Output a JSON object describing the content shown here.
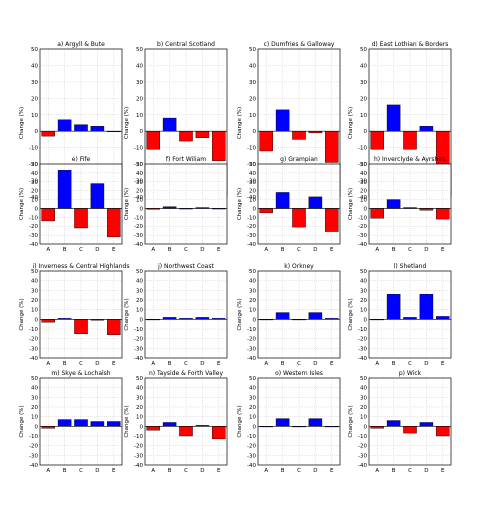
{
  "colors": {
    "positive": "#0000ff",
    "negative": "#ff0000",
    "axis": "#000000",
    "grid": "#bfbfbf",
    "background": "#ffffff"
  },
  "chart_data": [
    {
      "type": "bar",
      "title": "a) Argyll & Bute",
      "ylabel": "Change (%)",
      "categories": [
        "A",
        "B",
        "C",
        "D",
        "E"
      ],
      "values": [
        -3,
        7,
        4,
        3,
        0
      ],
      "ylim": [
        -40,
        50
      ],
      "yticks": [
        -40,
        -30,
        -20,
        -10,
        0,
        10,
        20,
        30,
        40,
        50
      ],
      "grid": true
    },
    {
      "type": "bar",
      "title": "b) Central Scotland",
      "ylabel": "Change (%)",
      "categories": [
        "A",
        "B",
        "C",
        "D",
        "E"
      ],
      "values": [
        -11,
        8,
        -6,
        -4,
        -18
      ],
      "ylim": [
        -40,
        50
      ],
      "yticks": [
        -40,
        -30,
        -20,
        -10,
        0,
        10,
        20,
        30,
        40,
        50
      ],
      "grid": true
    },
    {
      "type": "bar",
      "title": "c) Dumfries & Galloway",
      "ylabel": "Change (%)",
      "categories": [
        "A",
        "B",
        "C",
        "D",
        "E"
      ],
      "values": [
        -12,
        13,
        -5,
        -1,
        -19
      ],
      "ylim": [
        -40,
        50
      ],
      "yticks": [
        -40,
        -30,
        -20,
        -10,
        0,
        10,
        20,
        30,
        40,
        50
      ],
      "grid": true
    },
    {
      "type": "bar",
      "title": "d) East Lothian & Borders",
      "ylabel": "Change (%)",
      "categories": [
        "A",
        "B",
        "C",
        "D",
        "E"
      ],
      "values": [
        -11,
        16,
        -11,
        3,
        -23
      ],
      "ylim": [
        -40,
        50
      ],
      "yticks": [
        -40,
        -30,
        -20,
        -10,
        0,
        10,
        20,
        30,
        40,
        50
      ],
      "grid": true
    },
    {
      "type": "bar",
      "title": "e) Fife",
      "ylabel": "Change (%)",
      "categories": [
        "A",
        "B",
        "C",
        "D",
        "E"
      ],
      "values": [
        -14,
        43,
        -22,
        28,
        -32
      ],
      "ylim": [
        -40,
        50
      ],
      "yticks": [
        -40,
        -30,
        -20,
        -10,
        0,
        10,
        20,
        30,
        40,
        50
      ],
      "grid": true
    },
    {
      "type": "bar",
      "title": "f) Fort Wiliam",
      "ylabel": "Change (%)",
      "categories": [
        "A",
        "B",
        "C",
        "D",
        "E"
      ],
      "values": [
        -1,
        2,
        0,
        1,
        0
      ],
      "ylim": [
        -40,
        50
      ],
      "yticks": [
        -40,
        -30,
        -20,
        -10,
        0,
        10,
        20,
        30,
        40,
        50
      ],
      "grid": true
    },
    {
      "type": "bar",
      "title": "g) Grampian",
      "ylabel": "Change (%)",
      "categories": [
        "A",
        "B",
        "C",
        "D",
        "E"
      ],
      "values": [
        -5,
        18,
        -21,
        13,
        -26
      ],
      "ylim": [
        -40,
        50
      ],
      "yticks": [
        -40,
        -30,
        -20,
        -10,
        0,
        10,
        20,
        30,
        40,
        50
      ],
      "grid": true
    },
    {
      "type": "bar",
      "title": "h) Inverclyde & Ayrshire",
      "ylabel": "Change (%)",
      "categories": [
        "A",
        "B",
        "C",
        "D",
        "E"
      ],
      "values": [
        -11,
        10,
        1,
        -2,
        -12
      ],
      "ylim": [
        -40,
        50
      ],
      "yticks": [
        -40,
        -30,
        -20,
        -10,
        0,
        10,
        20,
        30,
        40,
        50
      ],
      "grid": true
    },
    {
      "type": "bar",
      "title": "i) Inverness & Central Highlands",
      "ylabel": "Change (%)",
      "categories": [
        "A",
        "B",
        "C",
        "D",
        "E"
      ],
      "values": [
        -3,
        1,
        -15,
        -1,
        -16
      ],
      "ylim": [
        -40,
        50
      ],
      "yticks": [
        -40,
        -30,
        -20,
        -10,
        0,
        10,
        20,
        30,
        40,
        50
      ],
      "grid": true
    },
    {
      "type": "bar",
      "title": "j) Northwest Coast",
      "ylabel": "Change (%)",
      "categories": [
        "A",
        "B",
        "C",
        "D",
        "E"
      ],
      "values": [
        0,
        2,
        1,
        2,
        1
      ],
      "ylim": [
        -40,
        50
      ],
      "yticks": [
        -40,
        -30,
        -20,
        -10,
        0,
        10,
        20,
        30,
        40,
        50
      ],
      "grid": true
    },
    {
      "type": "bar",
      "title": "k) Orkney",
      "ylabel": "Change (%)",
      "categories": [
        "A",
        "B",
        "C",
        "D",
        "E"
      ],
      "values": [
        0,
        7,
        0,
        7,
        1
      ],
      "ylim": [
        -40,
        50
      ],
      "yticks": [
        -40,
        -30,
        -20,
        -10,
        0,
        10,
        20,
        30,
        40,
        50
      ],
      "grid": true
    },
    {
      "type": "bar",
      "title": "l) Shetland",
      "ylabel": "Change (%)",
      "categories": [
        "A",
        "B",
        "C",
        "D",
        "E"
      ],
      "values": [
        0,
        26,
        2,
        26,
        3
      ],
      "ylim": [
        -40,
        50
      ],
      "yticks": [
        -40,
        -30,
        -20,
        -10,
        0,
        10,
        20,
        30,
        40,
        50
      ],
      "grid": true
    },
    {
      "type": "bar",
      "title": "m) Skye & Lochalsh",
      "ylabel": "Change (%)",
      "categories": [
        "A",
        "B",
        "C",
        "D",
        "E"
      ],
      "values": [
        -2,
        7,
        7,
        5,
        5
      ],
      "ylim": [
        -40,
        50
      ],
      "yticks": [
        -40,
        -30,
        -20,
        -10,
        0,
        10,
        20,
        30,
        40,
        50
      ],
      "grid": true
    },
    {
      "type": "bar",
      "title": "n) Tayside & Forth Valley",
      "ylabel": "Change (%)",
      "categories": [
        "A",
        "B",
        "C",
        "D",
        "E"
      ],
      "values": [
        -4,
        4,
        -10,
        1,
        -13
      ],
      "ylim": [
        -40,
        50
      ],
      "yticks": [
        -40,
        -30,
        -20,
        -10,
        0,
        10,
        20,
        30,
        40,
        50
      ],
      "grid": true
    },
    {
      "type": "bar",
      "title": "o) Western Isles",
      "ylabel": "Change (%)",
      "categories": [
        "A",
        "B",
        "C",
        "D",
        "E"
      ],
      "values": [
        0,
        8,
        0,
        8,
        0
      ],
      "ylim": [
        -40,
        50
      ],
      "yticks": [
        -40,
        -30,
        -20,
        -10,
        0,
        10,
        20,
        30,
        40,
        50
      ],
      "grid": true
    },
    {
      "type": "bar",
      "title": "p) Wick",
      "ylabel": "Change (%)",
      "categories": [
        "A",
        "B",
        "C",
        "D",
        "E"
      ],
      "values": [
        -2,
        6,
        -7,
        4,
        -10
      ],
      "ylim": [
        -40,
        50
      ],
      "yticks": [
        -40,
        -30,
        -20,
        -10,
        0,
        10,
        20,
        30,
        40,
        50
      ],
      "grid": true
    }
  ]
}
